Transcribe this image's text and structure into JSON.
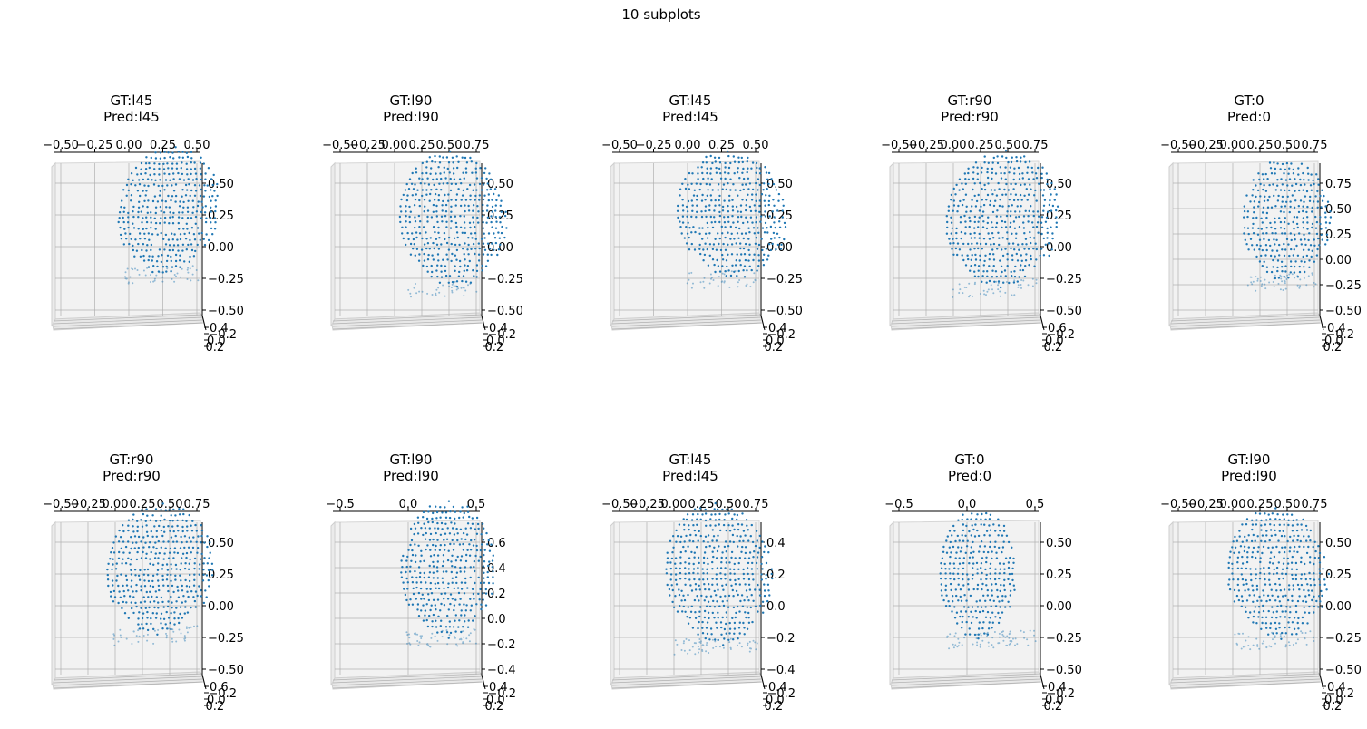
{
  "figure": {
    "title": "10 subplots",
    "point_color": "#1f77b4",
    "pane_color": "#f2f2f2",
    "grid_color": "#b0b0b0"
  },
  "chart_data": [
    {
      "type": "scatter",
      "subtitle": [
        "GT:l45",
        "Pred:l45"
      ],
      "x_ticks": [
        "−0.50",
        "−0.25",
        "0.00",
        "0.25",
        "0.50"
      ],
      "y_ticks": [
        "0.50",
        "0.25",
        "0.00",
        "−0.25",
        "−0.50"
      ],
      "z_ticks": [
        "0.4",
        "−0.2",
        "0.0",
        "0.2"
      ]
    },
    {
      "type": "scatter",
      "subtitle": [
        "GT:l90",
        "Pred:l90"
      ],
      "x_ticks": [
        "−0.50",
        "−0.25",
        "0.00",
        "0.25",
        "0.50",
        "0.75"
      ],
      "y_ticks": [
        "0.50",
        "0.25",
        "0.00",
        "−0.25",
        "−0.50"
      ],
      "z_ticks": [
        "0.4",
        "−0.2",
        "0.0",
        "0.2"
      ]
    },
    {
      "type": "scatter",
      "subtitle": [
        "GT:l45",
        "Pred:l45"
      ],
      "x_ticks": [
        "−0.50",
        "−0.25",
        "0.00",
        "0.25",
        "0.50"
      ],
      "y_ticks": [
        "0.50",
        "0.25",
        "0.00",
        "−0.25",
        "−0.50"
      ],
      "z_ticks": [
        "0.4",
        "−0.2",
        "0.0",
        "0.2"
      ]
    },
    {
      "type": "scatter",
      "subtitle": [
        "GT:r90",
        "Pred:r90"
      ],
      "x_ticks": [
        "−0.50",
        "−0.25",
        "0.00",
        "0.25",
        "0.50",
        "0.75"
      ],
      "y_ticks": [
        "0.50",
        "0.25",
        "0.00",
        "−0.25",
        "−0.50"
      ],
      "z_ticks": [
        "0.6",
        "−0.2",
        "0.0",
        "0.2"
      ]
    },
    {
      "type": "scatter",
      "subtitle": [
        "GT:0",
        "Pred:0"
      ],
      "x_ticks": [
        "−0.50",
        "−0.25",
        "0.00",
        "0.25",
        "0.50",
        "0.75"
      ],
      "y_ticks": [
        "0.75",
        "0.50",
        "0.25",
        "0.00",
        "−0.25",
        "−0.50"
      ],
      "z_ticks": [
        "0.4",
        "−0.2",
        "0.0",
        "0.2"
      ]
    },
    {
      "type": "scatter",
      "subtitle": [
        "GT:r90",
        "Pred:r90"
      ],
      "x_ticks": [
        "−0.50",
        "−0.25",
        "0.00",
        "0.25",
        "0.50",
        "0.75"
      ],
      "y_ticks": [
        "0.50",
        "0.25",
        "0.00",
        "−0.25",
        "−0.50"
      ],
      "z_ticks": [
        "0.6",
        "−0.2",
        "0.0",
        "0.2"
      ]
    },
    {
      "type": "scatter",
      "subtitle": [
        "GT:l90",
        "Pred:l90"
      ],
      "x_ticks": [
        "−0.5",
        "0.0",
        "0.5"
      ],
      "y_ticks": [
        "0.6",
        "0.4",
        "0.2",
        "0.0",
        "−0.2",
        "−0.4"
      ],
      "z_ticks": [
        "0.4",
        "−0.2",
        "0.0",
        "0.2"
      ]
    },
    {
      "type": "scatter",
      "subtitle": [
        "GT:l45",
        "Pred:l45"
      ],
      "x_ticks": [
        "−0.50",
        "−0.25",
        "0.00",
        "0.25",
        "0.50",
        "0.75"
      ],
      "y_ticks": [
        "0.4",
        "0.2",
        "0.0",
        "−0.2",
        "−0.4"
      ],
      "z_ticks": [
        "0.4",
        "−0.2",
        "0.0",
        "0.2"
      ]
    },
    {
      "type": "scatter",
      "subtitle": [
        "GT:0",
        "Pred:0"
      ],
      "x_ticks": [
        "−0.5",
        "0.0",
        "0.5"
      ],
      "y_ticks": [
        "0.50",
        "0.25",
        "0.00",
        "−0.25",
        "−0.50"
      ],
      "z_ticks": [
        "0.4",
        "−0.2",
        "0.0",
        "0.2"
      ]
    },
    {
      "type": "scatter",
      "subtitle": [
        "GT:l90",
        "Pred:l90"
      ],
      "x_ticks": [
        "−0.50",
        "−0.25",
        "0.00",
        "0.25",
        "0.50",
        "0.75"
      ],
      "y_ticks": [
        "0.50",
        "0.25",
        "0.00",
        "−0.25",
        "−0.50"
      ],
      "z_ticks": [
        "0.4",
        "−0.2",
        "0.0",
        "0.2"
      ]
    }
  ]
}
